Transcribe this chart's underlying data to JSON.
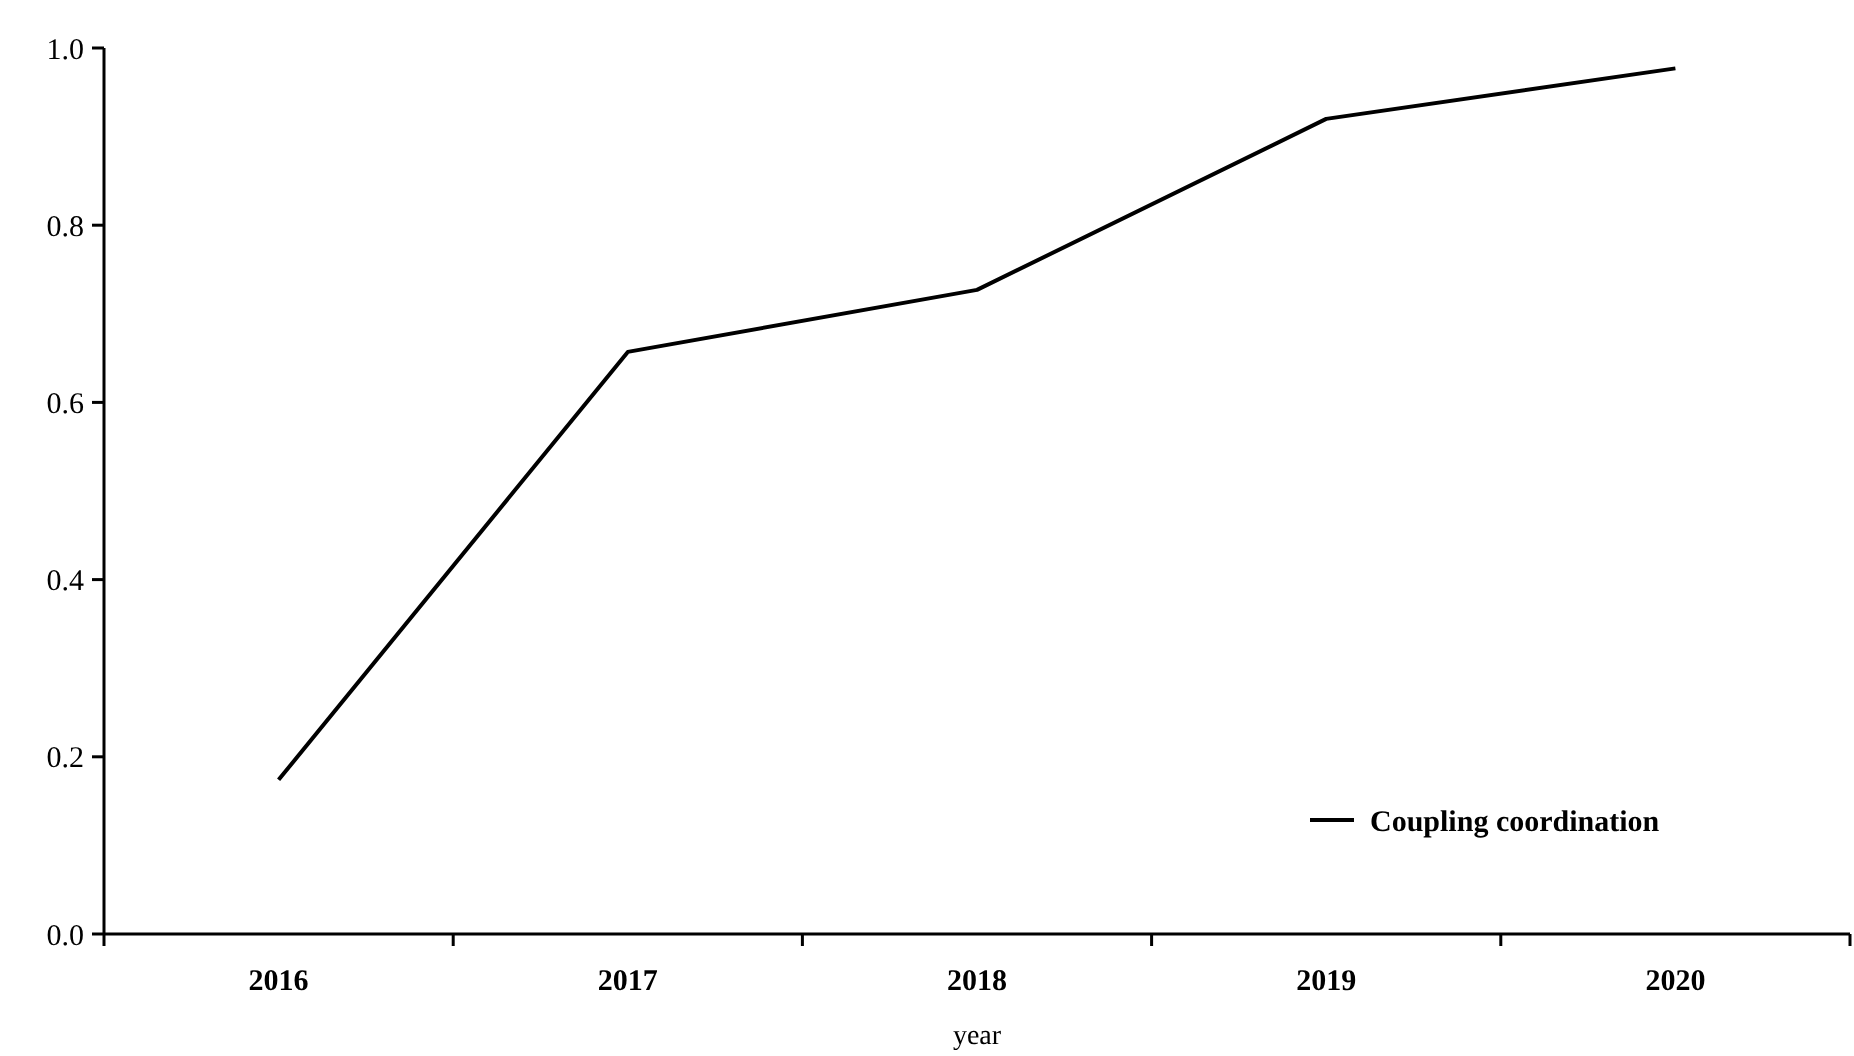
{
  "chart_data": {
    "type": "line",
    "xlabel": "year",
    "categories": [
      "2016",
      "2017",
      "2018",
      "2019",
      "2020"
    ],
    "series": [
      {
        "name": "Coupling coordination",
        "color": "#000000",
        "values": [
          0.174,
          0.657,
          0.727,
          0.92,
          0.977
        ]
      }
    ],
    "ylim": [
      0,
      1
    ],
    "yticks": [
      {
        "value": 0,
        "label": "0.0"
      },
      {
        "value": 0.2,
        "label": "0.2"
      },
      {
        "value": 0.4,
        "label": "0.4"
      },
      {
        "value": 0.6,
        "label": "0.6"
      },
      {
        "value": 0.8,
        "label": "0.8"
      },
      {
        "value": 1,
        "label": "1.0"
      }
    ],
    "grid": false,
    "legend": "bottom right",
    "marker": "none",
    "line_style": "solid"
  }
}
